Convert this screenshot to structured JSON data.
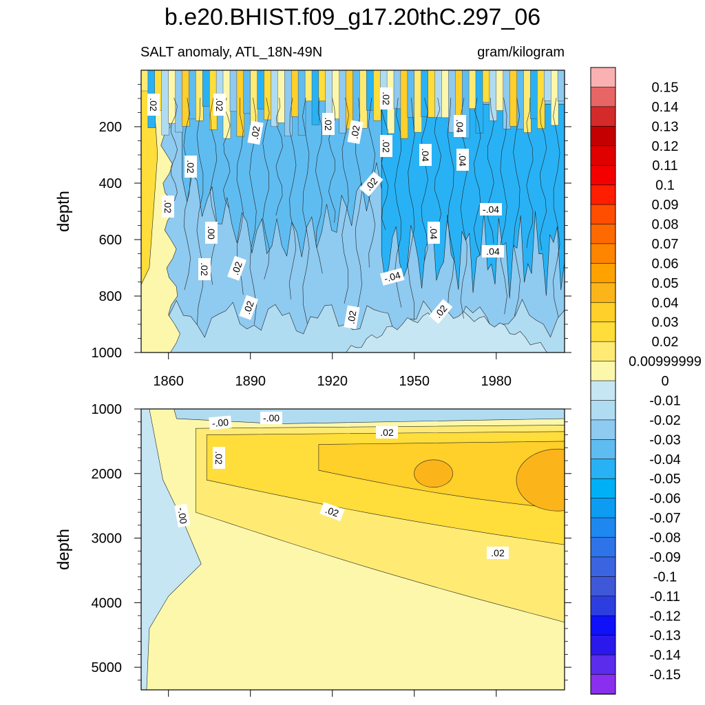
{
  "chart_data": {
    "type": "heatmap",
    "subtype": "filled-contour (depth vs time)",
    "title": "b.e20.BHIST.f09_g17.20thC.297_06",
    "left_subtitle": "SALT anomaly, ATL_18N-49N",
    "right_subtitle": "gram/kilogram",
    "xlabel": "",
    "x_ticks": [
      1860,
      1890,
      1920,
      1950,
      1980
    ],
    "xlim": [
      1850,
      2005
    ],
    "panels": [
      {
        "name": "upper",
        "ylabel": "depth",
        "y_ticks": [
          200,
          400,
          600,
          800,
          1000
        ],
        "ylim": [
          0,
          1000
        ],
        "contour_labels": [
          ".02",
          ".02",
          ".02",
          ".02",
          ".02",
          ".02",
          ".02",
          ".04",
          ".04",
          ".04",
          ".02",
          ".02",
          ".02",
          ".00",
          ".02",
          ".02",
          ".04",
          "-.04",
          ".04",
          "-.04",
          ".02",
          ".02",
          ".02",
          ".02"
        ],
        "description_of_fields": "shallow near-surface oscillating positive/negative; negative anomaly (-0.01 to -0.05) dominates 100-1000 m; positive near 1850-1860"
      },
      {
        "name": "lower",
        "ylabel": "depth",
        "y_ticks": [
          1000,
          2000,
          3000,
          4000,
          5000
        ],
        "ylim": [
          1000,
          5350
        ],
        "contour_labels": [
          "-.00",
          "-.00",
          ".02",
          ".02",
          ".02",
          ".02",
          "-.00"
        ],
        "description_of_fields": "positive anomaly (0 to 0.05) spreading downward over time, max near 2000 m after 1950"
      }
    ],
    "colorbar": {
      "labels": [
        "0.15",
        "0.14",
        "0.13",
        "0.12",
        "0.11",
        "0.1",
        "0.09",
        "0.08",
        "0.07",
        "0.06",
        "0.05",
        "0.04",
        "0.03",
        "0.02",
        "0.00999999",
        "0",
        "-0.01",
        "-0.02",
        "-0.03",
        "-0.04",
        "-0.05",
        "-0.06",
        "-0.07",
        "-0.08",
        "-0.09",
        "-0.1",
        "-0.11",
        "-0.12",
        "-0.13",
        "-0.14",
        "-0.15"
      ],
      "colors": [
        "#f9b1b1",
        "#e86565",
        "#d42a2a",
        "#c40000",
        "#e00000",
        "#f40000",
        "#ff1e00",
        "#ff4e00",
        "#ff6a00",
        "#ff8400",
        "#ffa200",
        "#fbb51a",
        "#ffcf2a",
        "#ffdd3a",
        "#ffeb73",
        "#fdf7ab",
        "#c6e6f4",
        "#b0dcf2",
        "#8fcaf0",
        "#5fbcf0",
        "#28b2f5",
        "#00b0f5",
        "#0d9cf2",
        "#1e88f0",
        "#2f73e8",
        "#3a64e0",
        "#3f58d8",
        "#2d3ee0",
        "#0f11f8",
        "#2a18ec",
        "#5a2cec",
        "#8a2fee"
      ]
    }
  }
}
